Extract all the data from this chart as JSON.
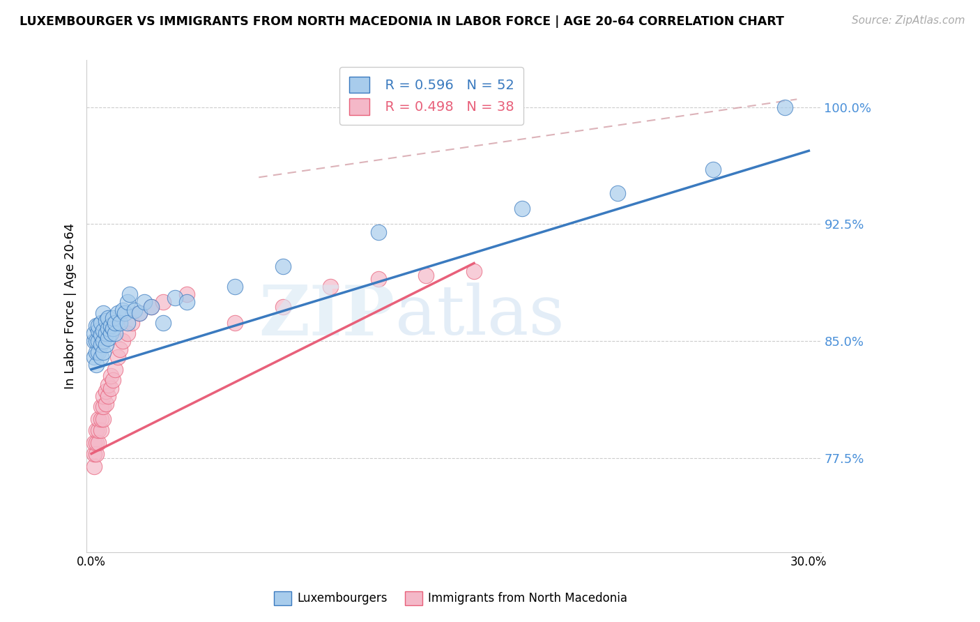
{
  "title": "LUXEMBOURGER VS IMMIGRANTS FROM NORTH MACEDONIA IN LABOR FORCE | AGE 20-64 CORRELATION CHART",
  "source": "Source: ZipAtlas.com",
  "ylabel": "In Labor Force | Age 20-64",
  "xlim": [
    -0.002,
    0.305
  ],
  "ylim": [
    0.715,
    1.03
  ],
  "yticks": [
    0.775,
    0.85,
    0.925,
    1.0
  ],
  "ytick_labels": [
    "77.5%",
    "85.0%",
    "92.5%",
    "100.0%"
  ],
  "xticks": [
    0.0,
    0.05,
    0.1,
    0.15,
    0.2,
    0.25,
    0.3
  ],
  "xtick_labels": [
    "0.0%",
    "",
    "",
    "",
    "",
    "",
    "30.0%"
  ],
  "legend_r1": "R = 0.596",
  "legend_n1": "N = 52",
  "legend_r2": "R = 0.498",
  "legend_n2": "N = 38",
  "blue_color": "#a8ccec",
  "pink_color": "#f4b8c8",
  "blue_line_color": "#3a7abf",
  "pink_line_color": "#e8607a",
  "blue_tick_color": "#4a90d9",
  "watermark_zip": "ZIP",
  "watermark_atlas": "atlas",
  "blue_scatter_x": [
    0.001,
    0.001,
    0.001,
    0.002,
    0.002,
    0.002,
    0.002,
    0.003,
    0.003,
    0.003,
    0.003,
    0.004,
    0.004,
    0.004,
    0.004,
    0.005,
    0.005,
    0.005,
    0.005,
    0.006,
    0.006,
    0.006,
    0.007,
    0.007,
    0.007,
    0.008,
    0.008,
    0.009,
    0.009,
    0.01,
    0.01,
    0.011,
    0.012,
    0.013,
    0.014,
    0.015,
    0.015,
    0.016,
    0.018,
    0.02,
    0.022,
    0.025,
    0.03,
    0.035,
    0.04,
    0.06,
    0.08,
    0.12,
    0.18,
    0.22,
    0.26,
    0.29
  ],
  "blue_scatter_y": [
    0.84,
    0.85,
    0.855,
    0.835,
    0.843,
    0.85,
    0.86,
    0.843,
    0.85,
    0.857,
    0.86,
    0.84,
    0.848,
    0.854,
    0.862,
    0.843,
    0.85,
    0.857,
    0.868,
    0.848,
    0.855,
    0.863,
    0.852,
    0.858,
    0.865,
    0.855,
    0.86,
    0.858,
    0.865,
    0.855,
    0.862,
    0.868,
    0.862,
    0.87,
    0.868,
    0.875,
    0.862,
    0.88,
    0.87,
    0.868,
    0.875,
    0.872,
    0.862,
    0.878,
    0.875,
    0.885,
    0.898,
    0.92,
    0.935,
    0.945,
    0.96,
    1.0
  ],
  "pink_scatter_x": [
    0.001,
    0.001,
    0.001,
    0.002,
    0.002,
    0.002,
    0.003,
    0.003,
    0.003,
    0.004,
    0.004,
    0.004,
    0.005,
    0.005,
    0.005,
    0.006,
    0.006,
    0.007,
    0.007,
    0.008,
    0.008,
    0.009,
    0.01,
    0.011,
    0.012,
    0.013,
    0.015,
    0.017,
    0.02,
    0.025,
    0.03,
    0.04,
    0.06,
    0.08,
    0.1,
    0.12,
    0.14,
    0.16
  ],
  "pink_scatter_y": [
    0.77,
    0.778,
    0.785,
    0.778,
    0.785,
    0.793,
    0.785,
    0.793,
    0.8,
    0.793,
    0.8,
    0.808,
    0.8,
    0.808,
    0.815,
    0.81,
    0.818,
    0.815,
    0.822,
    0.82,
    0.828,
    0.825,
    0.832,
    0.84,
    0.845,
    0.85,
    0.855,
    0.862,
    0.868,
    0.872,
    0.875,
    0.88,
    0.862,
    0.872,
    0.885,
    0.89,
    0.892,
    0.895
  ],
  "blue_line_x0": 0.0,
  "blue_line_x1": 0.3,
  "blue_line_y0": 0.832,
  "blue_line_y1": 0.972,
  "pink_line_x0": 0.0,
  "pink_line_x1": 0.16,
  "pink_line_y0": 0.778,
  "pink_line_y1": 0.9,
  "dash_line_x0": 0.07,
  "dash_line_x1": 0.295,
  "dash_line_y0": 0.955,
  "dash_line_y1": 1.005
}
